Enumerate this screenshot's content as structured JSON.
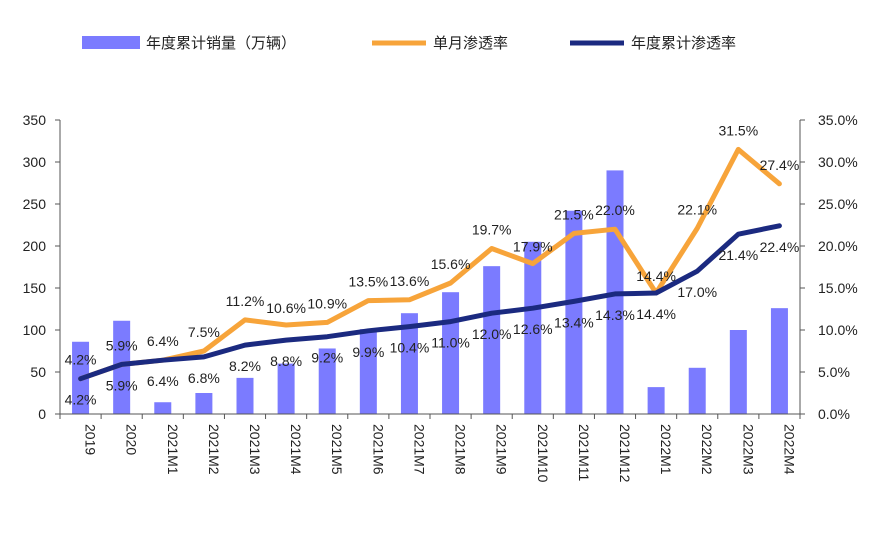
{
  "chart_data": {
    "type": "bar",
    "categories": [
      "2019",
      "2020",
      "2021M1",
      "2021M2",
      "2021M3",
      "2021M4",
      "2021M5",
      "2021M6",
      "2021M7",
      "2021M8",
      "2021M9",
      "2021M10",
      "2021M11",
      "2021M12",
      "2022M1",
      "2022M2",
      "2022M3",
      "2022M4"
    ],
    "series": [
      {
        "name": "年度累计销量（万辆）",
        "type": "bar",
        "axis": "left",
        "color": "#7b7bff",
        "values": [
          86,
          111,
          14,
          25,
          43,
          60,
          78,
          101,
          120,
          145,
          176,
          205,
          242,
          290,
          32,
          55,
          100,
          126
        ]
      },
      {
        "name": "单月渗透率",
        "type": "line",
        "axis": "right",
        "color": "#f7a43a",
        "values": [
          4.2,
          5.9,
          6.4,
          7.5,
          11.2,
          10.6,
          10.9,
          13.5,
          13.6,
          15.6,
          19.7,
          17.9,
          21.5,
          22.0,
          14.4,
          22.1,
          31.5,
          27.4
        ],
        "labels": [
          "4.2%",
          "5.9%",
          "6.4%",
          "7.5%",
          "11.2%",
          "10.6%",
          "10.9%",
          "13.5%",
          "13.6%",
          "15.6%",
          "19.7%",
          "17.9%",
          "21.5%",
          "22.0%",
          "14.4%",
          "22.1%",
          "31.5%",
          "27.4%"
        ]
      },
      {
        "name": "年度累计渗透率",
        "type": "line",
        "axis": "right",
        "color": "#1b2a80",
        "values": [
          4.2,
          5.9,
          6.4,
          6.8,
          8.2,
          8.8,
          9.2,
          9.9,
          10.4,
          11.0,
          12.0,
          12.6,
          13.4,
          14.3,
          14.4,
          17.0,
          21.4,
          22.4
        ],
        "labels": [
          "4.2%",
          "5.9%",
          "6.4%",
          "6.8%",
          "8.2%",
          "8.8%",
          "9.2%",
          "9.9%",
          "10.4%",
          "11.0%",
          "12.0%",
          "12.6%",
          "13.4%",
          "14.3%",
          "14.4%",
          "17.0%",
          "21.4%",
          "22.4%"
        ]
      }
    ],
    "ylim_left": [
      0,
      350
    ],
    "yticks_left": [
      "0",
      "50",
      "100",
      "150",
      "200",
      "250",
      "300",
      "350"
    ],
    "ylim_right": [
      0,
      35
    ],
    "yticks_right": [
      "0.0%",
      "5.0%",
      "10.0%",
      "15.0%",
      "20.0%",
      "25.0%",
      "30.0%",
      "35.0%"
    ],
    "legend_position": "top",
    "grid": false
  }
}
